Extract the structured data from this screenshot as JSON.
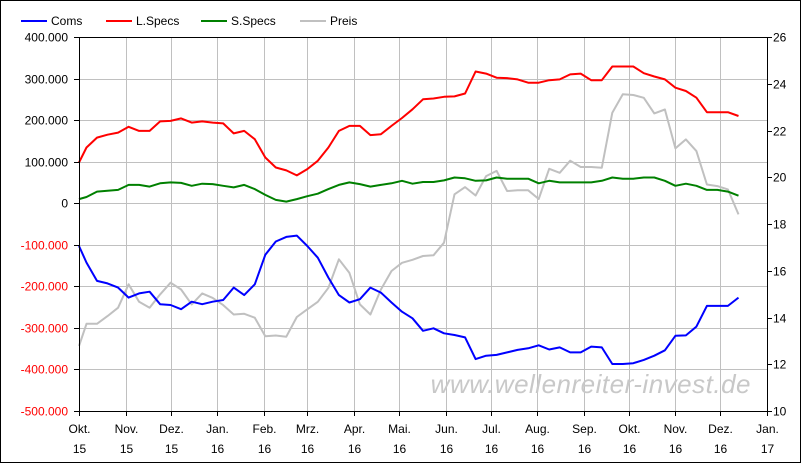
{
  "chart_data": {
    "type": "line",
    "watermark": "www.wellenreiter-invest.de",
    "legend_placement": "top",
    "grid": true,
    "x_range": [
      "2015-10-01",
      "2017-01-01"
    ],
    "x_ticks": [
      {
        "date": "2015-10-01",
        "month": "Okt.",
        "year": "15"
      },
      {
        "date": "2015-11-01",
        "month": "Nov.",
        "year": "15"
      },
      {
        "date": "2015-12-01",
        "month": "Dez.",
        "year": "15"
      },
      {
        "date": "2016-01-01",
        "month": "Jan.",
        "year": "16"
      },
      {
        "date": "2016-02-01",
        "month": "Feb.",
        "year": "16"
      },
      {
        "date": "2016-03-01",
        "month": "Mrz.",
        "year": "16"
      },
      {
        "date": "2016-04-01",
        "month": "Apr.",
        "year": "16"
      },
      {
        "date": "2016-05-01",
        "month": "Mai.",
        "year": "16"
      },
      {
        "date": "2016-06-01",
        "month": "Jun.",
        "year": "16"
      },
      {
        "date": "2016-07-01",
        "month": "Jul.",
        "year": "16"
      },
      {
        "date": "2016-08-01",
        "month": "Aug.",
        "year": "16"
      },
      {
        "date": "2016-09-01",
        "month": "Sep.",
        "year": "16"
      },
      {
        "date": "2016-10-01",
        "month": "Okt.",
        "year": "16"
      },
      {
        "date": "2016-11-01",
        "month": "Nov.",
        "year": "16"
      },
      {
        "date": "2016-12-01",
        "month": "Dez.",
        "year": "16"
      },
      {
        "date": "2017-01-01",
        "month": "Jan.",
        "year": "17"
      }
    ],
    "y_left": {
      "range": [
        -500000,
        400000
      ],
      "ticks": [
        400000,
        300000,
        200000,
        100000,
        0,
        -100000,
        -200000,
        -300000,
        -400000,
        -500000
      ],
      "tick_labels": [
        "400.000",
        "300.000",
        "200.000",
        "100.000",
        "0",
        "-100.000",
        "-200.000",
        "-300.000",
        "-400.000",
        "-500.000"
      ],
      "negative_label_color": "#ff0000"
    },
    "y_right": {
      "range": [
        10,
        26
      ],
      "ticks": [
        26,
        24,
        22,
        20,
        18,
        16,
        14,
        12,
        10
      ],
      "tick_labels": [
        "26",
        "24",
        "22",
        "20",
        "18",
        "16",
        "14",
        "12",
        "10"
      ]
    },
    "x": [
      "2015-09-29",
      "2015-10-06",
      "2015-10-13",
      "2015-10-20",
      "2015-10-27",
      "2015-11-03",
      "2015-11-10",
      "2015-11-17",
      "2015-11-24",
      "2015-12-01",
      "2015-12-08",
      "2015-12-15",
      "2015-12-22",
      "2015-12-29",
      "2016-01-05",
      "2016-01-12",
      "2016-01-19",
      "2016-01-26",
      "2016-02-02",
      "2016-02-09",
      "2016-02-16",
      "2016-02-23",
      "2016-03-01",
      "2016-03-08",
      "2016-03-15",
      "2016-03-22",
      "2016-03-29",
      "2016-04-05",
      "2016-04-12",
      "2016-04-19",
      "2016-04-26",
      "2016-05-03",
      "2016-05-10",
      "2016-05-17",
      "2016-05-24",
      "2016-05-31",
      "2016-06-07",
      "2016-06-14",
      "2016-06-21",
      "2016-06-28",
      "2016-07-05",
      "2016-07-12",
      "2016-07-19",
      "2016-07-26",
      "2016-08-02",
      "2016-08-09",
      "2016-08-16",
      "2016-08-23",
      "2016-08-30",
      "2016-09-06",
      "2016-09-13",
      "2016-09-20",
      "2016-09-27",
      "2016-10-04",
      "2016-10-11",
      "2016-10-18",
      "2016-10-25",
      "2016-11-01",
      "2016-11-08",
      "2016-11-15",
      "2016-11-22",
      "2016-11-29",
      "2016-12-06",
      "2016-12-13"
    ],
    "series": [
      {
        "name": "Coms",
        "color": "#0000ff",
        "axis": "left",
        "values": [
          -103000,
          -143000,
          -187000,
          -193000,
          -203000,
          -227000,
          -217000,
          -213000,
          -243000,
          -245000,
          -255000,
          -237000,
          -243000,
          -237000,
          -233000,
          -203000,
          -221000,
          -195000,
          -124000,
          -92000,
          -81000,
          -78000,
          -103000,
          -131000,
          -179000,
          -221000,
          -239000,
          -231000,
          -203000,
          -215000,
          -239000,
          -261000,
          -277000,
          -307000,
          -301000,
          -313000,
          -317000,
          -323000,
          -375000,
          -367000,
          -365000,
          -359000,
          -353000,
          -349000,
          -342000,
          -352000,
          -347000,
          -359000,
          -359000,
          -345000,
          -347000,
          -387000,
          -387000,
          -385000,
          -377000,
          -367000,
          -354000,
          -319000,
          -318000,
          -297000,
          -247000,
          -247000,
          -247000,
          -227000
        ]
      },
      {
        "name": "L.Specs",
        "color": "#ff0000",
        "axis": "left",
        "values": [
          98000,
          134000,
          158000,
          165000,
          170000,
          184000,
          174000,
          174000,
          197000,
          198000,
          204000,
          194000,
          197000,
          194000,
          192000,
          168000,
          174000,
          154000,
          110000,
          86000,
          79000,
          67000,
          82000,
          102000,
          134000,
          174000,
          186000,
          186000,
          164000,
          166000,
          186000,
          205000,
          226000,
          250000,
          252000,
          256000,
          257000,
          264000,
          317000,
          312000,
          302000,
          301000,
          298000,
          290000,
          290000,
          296000,
          298000,
          310000,
          312000,
          296000,
          296000,
          329000,
          329000,
          329000,
          313000,
          305000,
          298000,
          278000,
          270000,
          254000,
          219000,
          219000,
          219000,
          210000
        ]
      },
      {
        "name": "S.Specs",
        "color": "#008000",
        "axis": "left",
        "values": [
          10000,
          15000,
          28000,
          30000,
          32000,
          44000,
          44000,
          40000,
          48000,
          50000,
          49000,
          42000,
          47000,
          46000,
          42000,
          38000,
          44000,
          34000,
          20000,
          8000,
          4000,
          10000,
          17000,
          23000,
          34000,
          44000,
          50000,
          46000,
          40000,
          44000,
          48000,
          54000,
          47000,
          51000,
          51000,
          55000,
          62000,
          60000,
          54000,
          55000,
          62000,
          59000,
          59000,
          59000,
          48000,
          54000,
          50000,
          50000,
          50000,
          50000,
          54000,
          62000,
          59000,
          59000,
          62000,
          62000,
          54000,
          42000,
          47000,
          42000,
          32000,
          32000,
          28000,
          18000
        ]
      },
      {
        "name": "Preis",
        "color": "#c0c0c0",
        "axis": "right",
        "values": [
          12.78,
          13.73,
          13.73,
          14.06,
          14.42,
          15.42,
          14.67,
          14.42,
          14.99,
          15.49,
          15.2,
          14.56,
          15.03,
          14.84,
          14.53,
          14.13,
          14.16,
          13.99,
          13.2,
          13.23,
          13.18,
          14.02,
          14.35,
          14.67,
          15.27,
          16.49,
          15.91,
          14.56,
          14.13,
          15.2,
          15.99,
          16.34,
          16.47,
          16.63,
          16.66,
          17.2,
          19.27,
          19.58,
          19.22,
          20.05,
          20.27,
          19.41,
          19.44,
          19.44,
          19.07,
          20.36,
          20.19,
          20.71,
          20.44,
          20.44,
          20.41,
          22.76,
          23.55,
          23.52,
          23.4,
          22.73,
          22.9,
          21.24,
          21.62,
          21.12,
          19.69,
          19.62,
          19.48,
          18.41
        ]
      }
    ]
  }
}
